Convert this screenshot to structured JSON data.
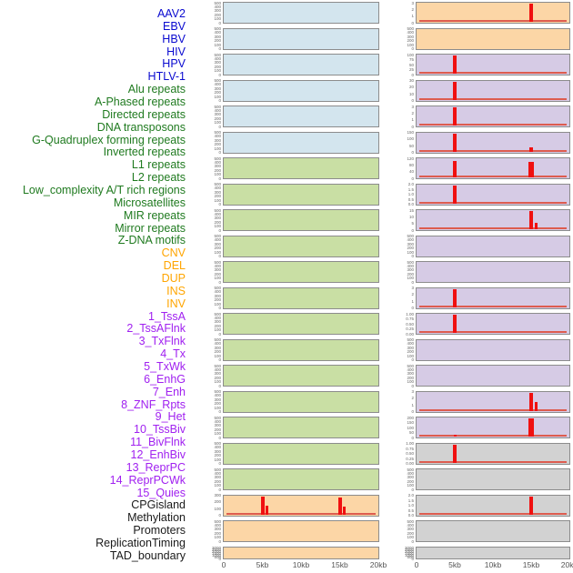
{
  "chart_data": {
    "type": "bar",
    "title": "",
    "layout": {
      "columns": 2,
      "rows_per_column": 22,
      "legend": "none",
      "grid": "off"
    },
    "x_range_kb": [
      0,
      20
    ],
    "x_tick_labels": [
      "0",
      "5kb",
      "10kb",
      "15kb",
      "20kb"
    ],
    "colors": {
      "label": {
        "virus": "#0a0ad0",
        "repeat": "#1f7a1f",
        "sv": "#ffa500",
        "chromhmm": "#a020f0",
        "other": "#1a1a1a"
      },
      "panel": {
        "virus": "#d3e5ee",
        "repeat": "#c9dfa4",
        "sv": "#fcd6a6",
        "chromhmm": "#d6cbe5",
        "other": "#d2d2d2"
      },
      "spike": "#f01010",
      "baseline": "#dd5c4f",
      "panel_border": "#8c8c8c",
      "tick_text": "#666666",
      "axis_text": "#555555"
    },
    "tracks": [
      {
        "name": "AAV2",
        "group": "virus",
        "column": "left",
        "y_ticks": [
          "500",
          "400",
          "300",
          "200",
          "100",
          "0"
        ],
        "peaks": [],
        "baseline": false
      },
      {
        "name": "EBV",
        "group": "virus",
        "column": "left",
        "y_ticks": [
          "500",
          "400",
          "300",
          "200",
          "100",
          "0"
        ],
        "peaks": [],
        "baseline": false
      },
      {
        "name": "HBV",
        "group": "virus",
        "column": "left",
        "y_ticks": [
          "500",
          "400",
          "300",
          "200",
          "100",
          "0"
        ],
        "peaks": [],
        "baseline": false
      },
      {
        "name": "HIV",
        "group": "virus",
        "column": "left",
        "y_ticks": [
          "500",
          "400",
          "300",
          "200",
          "100",
          "0"
        ],
        "peaks": [],
        "baseline": false
      },
      {
        "name": "HPV",
        "group": "virus",
        "column": "left",
        "y_ticks": [
          "500",
          "400",
          "300",
          "200",
          "100",
          "0"
        ],
        "peaks": [],
        "baseline": false
      },
      {
        "name": "HTLV-1",
        "group": "virus",
        "column": "left",
        "y_ticks": [
          "500",
          "400",
          "300",
          "200",
          "100",
          "0"
        ],
        "peaks": [],
        "baseline": false
      },
      {
        "name": "Alu repeats",
        "group": "repeat",
        "column": "left",
        "y_ticks": [
          "500",
          "400",
          "300",
          "200",
          "100",
          "0"
        ],
        "peaks": [],
        "baseline": false
      },
      {
        "name": "A-Phased repeats",
        "group": "repeat",
        "column": "left",
        "y_ticks": [
          "500",
          "400",
          "300",
          "200",
          "100",
          "0"
        ],
        "peaks": [],
        "baseline": false
      },
      {
        "name": "Directed repeats",
        "group": "repeat",
        "column": "left",
        "y_ticks": [
          "500",
          "400",
          "300",
          "200",
          "100",
          "0"
        ],
        "peaks": [],
        "baseline": false
      },
      {
        "name": "DNA transposons",
        "group": "repeat",
        "column": "left",
        "y_ticks": [
          "500",
          "400",
          "300",
          "200",
          "100",
          "0"
        ],
        "peaks": [],
        "baseline": false
      },
      {
        "name": "G-Quadruplex forming repeats",
        "group": "repeat",
        "column": "left",
        "y_ticks": [
          "500",
          "400",
          "300",
          "200",
          "100",
          "0"
        ],
        "peaks": [],
        "baseline": false
      },
      {
        "name": "Inverted repeats",
        "group": "repeat",
        "column": "left",
        "y_ticks": [
          "500",
          "400",
          "300",
          "200",
          "100",
          "0"
        ],
        "peaks": [],
        "baseline": false
      },
      {
        "name": "L1 repeats",
        "group": "repeat",
        "column": "left",
        "y_ticks": [
          "500",
          "400",
          "300",
          "200",
          "100",
          "0"
        ],
        "peaks": [],
        "baseline": false
      },
      {
        "name": "L2 repeats",
        "group": "repeat",
        "column": "left",
        "y_ticks": [
          "500",
          "400",
          "300",
          "200",
          "100",
          "0"
        ],
        "peaks": [],
        "baseline": false
      },
      {
        "name": "Low_complexity A/T rich regions",
        "group": "repeat",
        "column": "left",
        "y_ticks": [
          "500",
          "400",
          "300",
          "200",
          "100",
          "0"
        ],
        "peaks": [],
        "baseline": false
      },
      {
        "name": "Microsatellites",
        "group": "repeat",
        "column": "left",
        "y_ticks": [
          "500",
          "400",
          "300",
          "200",
          "100",
          "0"
        ],
        "peaks": [],
        "baseline": false
      },
      {
        "name": "MIR repeats",
        "group": "repeat",
        "column": "left",
        "y_ticks": [
          "500",
          "400",
          "300",
          "200",
          "100",
          "0"
        ],
        "peaks": [],
        "baseline": false
      },
      {
        "name": "Mirror repeats",
        "group": "repeat",
        "column": "left",
        "y_ticks": [
          "500",
          "400",
          "300",
          "200",
          "100",
          "0"
        ],
        "peaks": [],
        "baseline": false
      },
      {
        "name": "Z-DNA motifs",
        "group": "repeat",
        "column": "left",
        "y_ticks": [
          "500",
          "400",
          "300",
          "200",
          "100",
          "0"
        ],
        "peaks": [],
        "baseline": false
      },
      {
        "name": "CNV",
        "group": "sv",
        "column": "left",
        "y_ticks": [
          "300",
          "200",
          "100",
          "0"
        ],
        "peaks": [
          {
            "x_kb": 5,
            "rel_h": 1,
            "w": 4
          },
          {
            "x_kb": 5.6,
            "rel_h": 0.5,
            "w": 3
          },
          {
            "x_kb": 15,
            "rel_h": 0.93,
            "w": 4
          },
          {
            "x_kb": 15.6,
            "rel_h": 0.42,
            "w": 3
          }
        ],
        "baseline": true
      },
      {
        "name": "DEL",
        "group": "sv",
        "column": "left",
        "y_ticks": [
          "500",
          "400",
          "300",
          "200",
          "100",
          "0"
        ],
        "peaks": [],
        "baseline": false
      },
      {
        "name": "DUP",
        "group": "sv",
        "column": "left",
        "y_ticks": [
          "3000",
          "2500",
          "2000",
          "1500",
          "1000",
          "500",
          "0"
        ],
        "peaks": [],
        "baseline": false
      },
      {
        "name": "INS",
        "group": "sv",
        "column": "right",
        "y_ticks": [
          "3",
          "2",
          "1",
          "0"
        ],
        "peaks": [
          {
            "x_kb": 15,
            "rel_h": 1,
            "w": 4
          }
        ],
        "baseline": true
      },
      {
        "name": "INV",
        "group": "sv",
        "column": "right",
        "y_ticks": [
          "500",
          "400",
          "300",
          "200",
          "100",
          "0"
        ],
        "peaks": [],
        "baseline": false
      },
      {
        "name": "1_TssA",
        "group": "chromhmm",
        "column": "right",
        "y_ticks": [
          "100",
          "75",
          "50",
          "25",
          "0"
        ],
        "peaks": [
          {
            "x_kb": 5,
            "rel_h": 1,
            "w": 4
          }
        ],
        "baseline": true
      },
      {
        "name": "2_TssAFlnk",
        "group": "chromhmm",
        "column": "right",
        "y_ticks": [
          "30",
          "20",
          "10",
          "0"
        ],
        "peaks": [
          {
            "x_kb": 5,
            "rel_h": 1,
            "w": 4
          }
        ],
        "baseline": true
      },
      {
        "name": "3_TxFlnk",
        "group": "chromhmm",
        "column": "right",
        "y_ticks": [
          "3",
          "2",
          "1",
          "0"
        ],
        "peaks": [
          {
            "x_kb": 5,
            "rel_h": 1,
            "w": 4
          }
        ],
        "baseline": true
      },
      {
        "name": "4_Tx",
        "group": "chromhmm",
        "column": "right",
        "y_ticks": [
          "150",
          "100",
          "50",
          "0"
        ],
        "peaks": [
          {
            "x_kb": 5,
            "rel_h": 1,
            "w": 4
          },
          {
            "x_kb": 15,
            "rel_h": 0.22,
            "w": 4
          }
        ],
        "baseline": true
      },
      {
        "name": "5_TxWk",
        "group": "chromhmm",
        "column": "right",
        "y_ticks": [
          "120",
          "80",
          "40",
          "0"
        ],
        "peaks": [
          {
            "x_kb": 5,
            "rel_h": 0.92,
            "w": 4
          },
          {
            "x_kb": 15,
            "rel_h": 0.85,
            "w": 6
          }
        ],
        "baseline": true
      },
      {
        "name": "6_EnhG",
        "group": "chromhmm",
        "column": "right",
        "y_ticks": [
          "2.0",
          "1.5",
          "1.0",
          "0.5",
          "0.0"
        ],
        "peaks": [
          {
            "x_kb": 5,
            "rel_h": 1,
            "w": 4
          }
        ],
        "baseline": true
      },
      {
        "name": "7_Enh",
        "group": "chromhmm",
        "column": "right",
        "y_ticks": [
          "15",
          "10",
          "5",
          "0"
        ],
        "peaks": [
          {
            "x_kb": 15,
            "rel_h": 1,
            "w": 4
          },
          {
            "x_kb": 15.7,
            "rel_h": 0.35,
            "w": 3
          }
        ],
        "baseline": true
      },
      {
        "name": "8_ZNF_Rpts",
        "group": "chromhmm",
        "column": "right",
        "y_ticks": [
          "500",
          "400",
          "300",
          "200",
          "100",
          "0"
        ],
        "peaks": [],
        "baseline": false
      },
      {
        "name": "9_Het",
        "group": "chromhmm",
        "column": "right",
        "y_ticks": [
          "500",
          "400",
          "300",
          "200",
          "100",
          "0"
        ],
        "peaks": [],
        "baseline": false
      },
      {
        "name": "10_TssBiv",
        "group": "chromhmm",
        "column": "right",
        "y_ticks": [
          "3",
          "2",
          "1",
          "0"
        ],
        "peaks": [
          {
            "x_kb": 5,
            "rel_h": 1,
            "w": 4
          }
        ],
        "baseline": true
      },
      {
        "name": "11_BivFlnk",
        "group": "chromhmm",
        "column": "right",
        "y_ticks": [
          "1.00",
          "0.75",
          "0.50",
          "0.25",
          "0.00"
        ],
        "peaks": [
          {
            "x_kb": 5,
            "rel_h": 1,
            "w": 4
          }
        ],
        "baseline": true
      },
      {
        "name": "12_EnhBiv",
        "group": "chromhmm",
        "column": "right",
        "y_ticks": [
          "500",
          "400",
          "300",
          "200",
          "100",
          "0"
        ],
        "peaks": [],
        "baseline": false
      },
      {
        "name": "13_ReprPC",
        "group": "chromhmm",
        "column": "right",
        "y_ticks": [
          "500",
          "400",
          "300",
          "200",
          "100",
          "0"
        ],
        "peaks": [],
        "baseline": false
      },
      {
        "name": "14_ReprPCWk",
        "group": "chromhmm",
        "column": "right",
        "y_ticks": [
          "3",
          "2",
          "1",
          "0"
        ],
        "peaks": [
          {
            "x_kb": 15,
            "rel_h": 1,
            "w": 4
          },
          {
            "x_kb": 15.6,
            "rel_h": 0.5,
            "w": 3
          }
        ],
        "baseline": true
      },
      {
        "name": "15_Quies",
        "group": "chromhmm",
        "column": "right",
        "y_ticks": [
          "200",
          "150",
          "100",
          "50",
          "0"
        ],
        "peaks": [
          {
            "x_kb": 5,
            "rel_h": 0.12,
            "w": 3
          },
          {
            "x_kb": 15,
            "rel_h": 1,
            "w": 6
          }
        ],
        "baseline": true
      },
      {
        "name": "CPGisland",
        "group": "other",
        "column": "right",
        "y_ticks": [
          "1.00",
          "0.75",
          "0.50",
          "0.25",
          "0.00"
        ],
        "peaks": [
          {
            "x_kb": 5,
            "rel_h": 1,
            "w": 4
          }
        ],
        "baseline": true
      },
      {
        "name": "Methylation",
        "group": "other",
        "column": "right",
        "y_ticks": [
          "500",
          "400",
          "300",
          "200",
          "100",
          "0"
        ],
        "peaks": [],
        "baseline": false
      },
      {
        "name": "Promoters",
        "group": "other",
        "column": "right",
        "y_ticks": [
          "2.0",
          "1.5",
          "1.0",
          "0.5",
          "0.0"
        ],
        "peaks": [
          {
            "x_kb": 15,
            "rel_h": 1,
            "w": 4
          }
        ],
        "baseline": true
      },
      {
        "name": "ReplicationTiming",
        "group": "other",
        "column": "right",
        "y_ticks": [
          "500",
          "400",
          "300",
          "200",
          "100",
          "0"
        ],
        "peaks": [],
        "baseline": false
      },
      {
        "name": "TAD_boundary",
        "group": "other",
        "column": "right",
        "y_ticks": [
          "3000",
          "2500",
          "2000",
          "1500",
          "1000",
          "500",
          "0"
        ],
        "peaks": [],
        "baseline": false
      }
    ]
  }
}
